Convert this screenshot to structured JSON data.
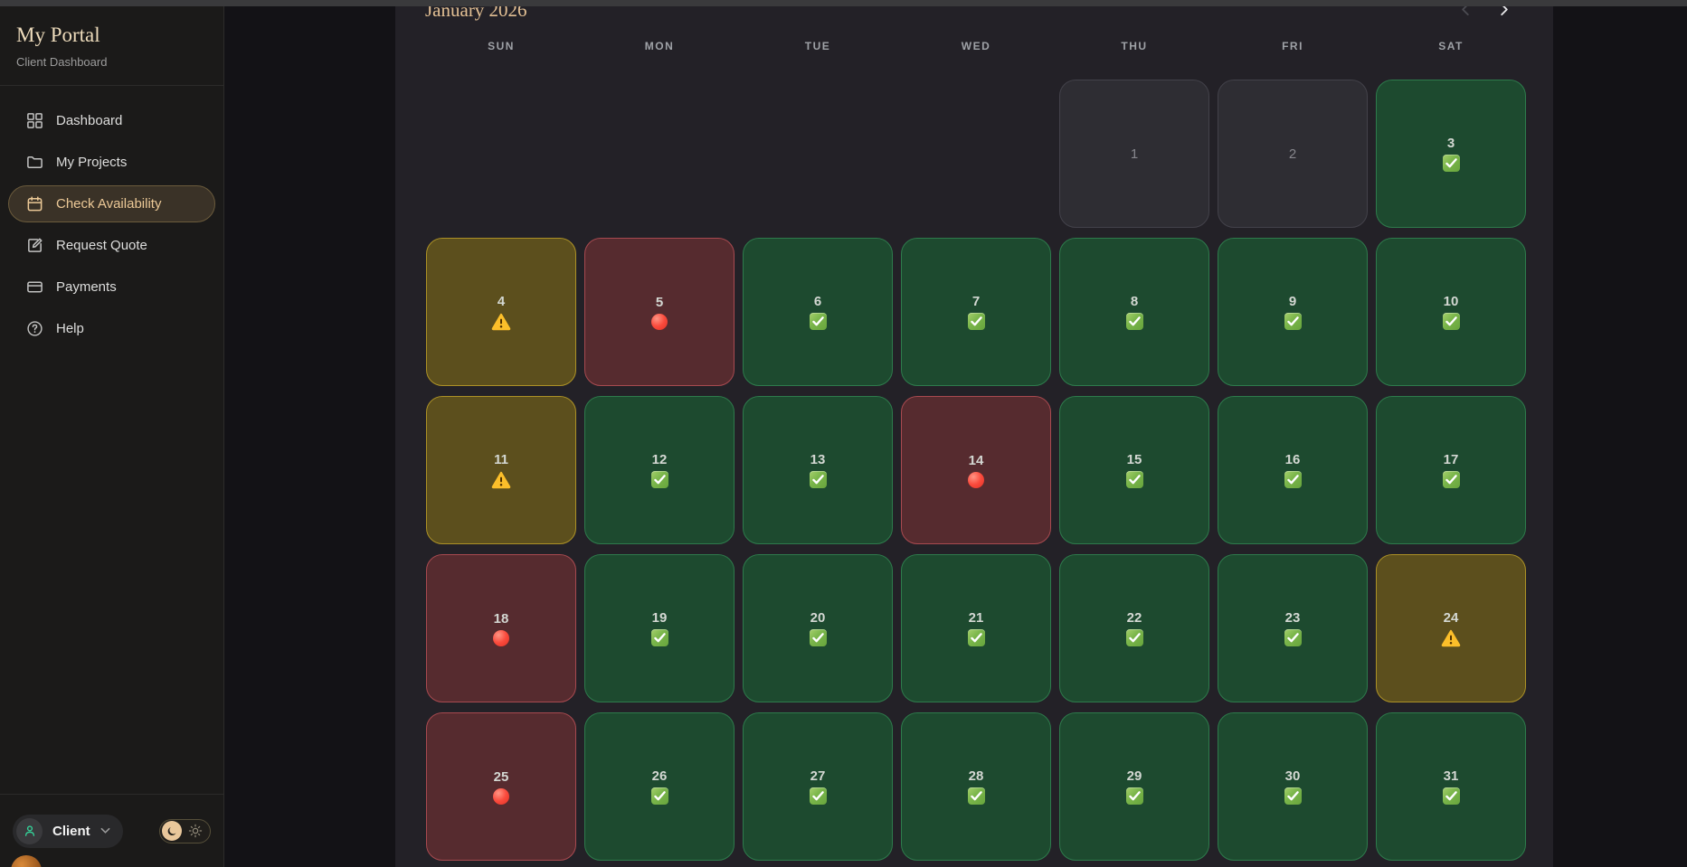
{
  "sidebar": {
    "title": "My Portal",
    "subtitle": "Client Dashboard",
    "items": [
      {
        "label": "Dashboard",
        "icon": "grid-icon",
        "active": false
      },
      {
        "label": "My Projects",
        "icon": "folder-icon",
        "active": false
      },
      {
        "label": "Check Availability",
        "icon": "calendar-icon",
        "active": true
      },
      {
        "label": "Request Quote",
        "icon": "edit-icon",
        "active": false
      },
      {
        "label": "Payments",
        "icon": "card-icon",
        "active": false
      },
      {
        "label": "Help",
        "icon": "help-icon",
        "active": false
      }
    ],
    "footer": {
      "user_label": "Client",
      "user_icon": "person-icon",
      "theme_toggle": {
        "selected": "dark",
        "icons": [
          "moon-icon",
          "sun-icon"
        ]
      }
    },
    "accent_color": "#ecc997"
  },
  "calendar": {
    "title": "January 2026",
    "nav": {
      "prev_icon": "chevron-left-icon",
      "next_icon": "chevron-right-icon"
    },
    "day_headers": [
      "SUN",
      "MON",
      "TUE",
      "WED",
      "THU",
      "FRI",
      "SAT"
    ],
    "leading_blanks": 4,
    "days": [
      {
        "day": 1,
        "status": "disabled"
      },
      {
        "day": 2,
        "status": "disabled"
      },
      {
        "day": 3,
        "status": "available"
      },
      {
        "day": 4,
        "status": "limited"
      },
      {
        "day": 5,
        "status": "booked"
      },
      {
        "day": 6,
        "status": "available"
      },
      {
        "day": 7,
        "status": "available"
      },
      {
        "day": 8,
        "status": "available"
      },
      {
        "day": 9,
        "status": "available"
      },
      {
        "day": 10,
        "status": "available"
      },
      {
        "day": 11,
        "status": "limited"
      },
      {
        "day": 12,
        "status": "available"
      },
      {
        "day": 13,
        "status": "available"
      },
      {
        "day": 14,
        "status": "booked"
      },
      {
        "day": 15,
        "status": "available"
      },
      {
        "day": 16,
        "status": "available"
      },
      {
        "day": 17,
        "status": "available"
      },
      {
        "day": 18,
        "status": "booked"
      },
      {
        "day": 19,
        "status": "available"
      },
      {
        "day": 20,
        "status": "available"
      },
      {
        "day": 21,
        "status": "available"
      },
      {
        "day": 22,
        "status": "available"
      },
      {
        "day": 23,
        "status": "available"
      },
      {
        "day": 24,
        "status": "limited"
      },
      {
        "day": 25,
        "status": "booked"
      },
      {
        "day": 26,
        "status": "available"
      },
      {
        "day": 27,
        "status": "available"
      },
      {
        "day": 28,
        "status": "available"
      },
      {
        "day": 29,
        "status": "available"
      },
      {
        "day": 30,
        "status": "available"
      },
      {
        "day": 31,
        "status": "available"
      }
    ],
    "status_styles": {
      "available": {
        "icon": "check-icon",
        "bg": "#1d4a2f",
        "border": "#2e7b4c"
      },
      "limited": {
        "icon": "warning-icon",
        "bg": "#5c4f1d",
        "border": "#ac9126"
      },
      "booked": {
        "icon": "red-circle-icon",
        "bg": "#562b2f",
        "border": "#a84a50"
      },
      "disabled": {
        "icon": "",
        "bg": "#2e2d33",
        "border": "#43424a"
      }
    },
    "title_color": "#e3c094"
  }
}
